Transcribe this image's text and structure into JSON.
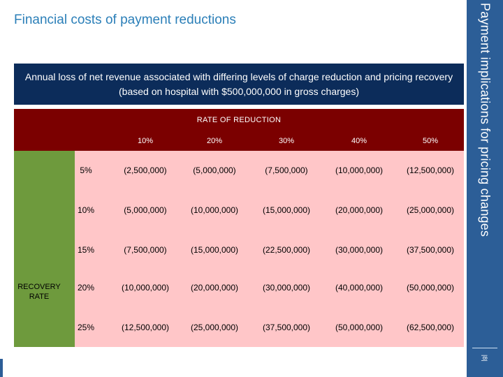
{
  "slide": {
    "title": "Financial costs of payment reductions",
    "subtitle": "Annual loss of net revenue associated with differing levels of charge reduction and pricing recovery (based on hospital with $500,000,000 in gross charges)",
    "side_title": "Payment implications for pricing changes",
    "page_number": "|8|"
  },
  "table": {
    "header": "RATE OF REDUCTION",
    "row_group_label": "RECOVERY RATE",
    "columns": [
      "10%",
      "20%",
      "30%",
      "40%",
      "50%"
    ],
    "rows": [
      {
        "label": "5%",
        "cells": [
          "(2,500,000)",
          "(5,000,000)",
          "(7,500,000)",
          "(10,000,000)",
          "(12,500,000)"
        ]
      },
      {
        "label": "10%",
        "cells": [
          "(5,000,000)",
          "(10,000,000)",
          "(15,000,000)",
          "(20,000,000)",
          "(25,000,000)"
        ]
      },
      {
        "label": "15%",
        "cells": [
          "(7,500,000)",
          "(15,000,000)",
          "(22,500,000)",
          "(30,000,000)",
          "(37,500,000)"
        ]
      },
      {
        "label": "20%",
        "cells": [
          "(10,000,000)",
          "(20,000,000)",
          "(30,000,000)",
          "(40,000,000)",
          "(50,000,000)"
        ]
      },
      {
        "label": "25%",
        "cells": [
          "(12,500,000)",
          "(25,000,000)",
          "(37,500,000)",
          "(50,000,000)",
          "(62,500,000)"
        ]
      }
    ]
  },
  "colors": {
    "title": "#2b7fb8",
    "subtitle_bg": "#0c2c5a",
    "side_band": "#2c5e97",
    "header_bg": "#7b0000",
    "recovery_bg": "#6e9a3d",
    "body_bg": "#ffc6c8"
  }
}
